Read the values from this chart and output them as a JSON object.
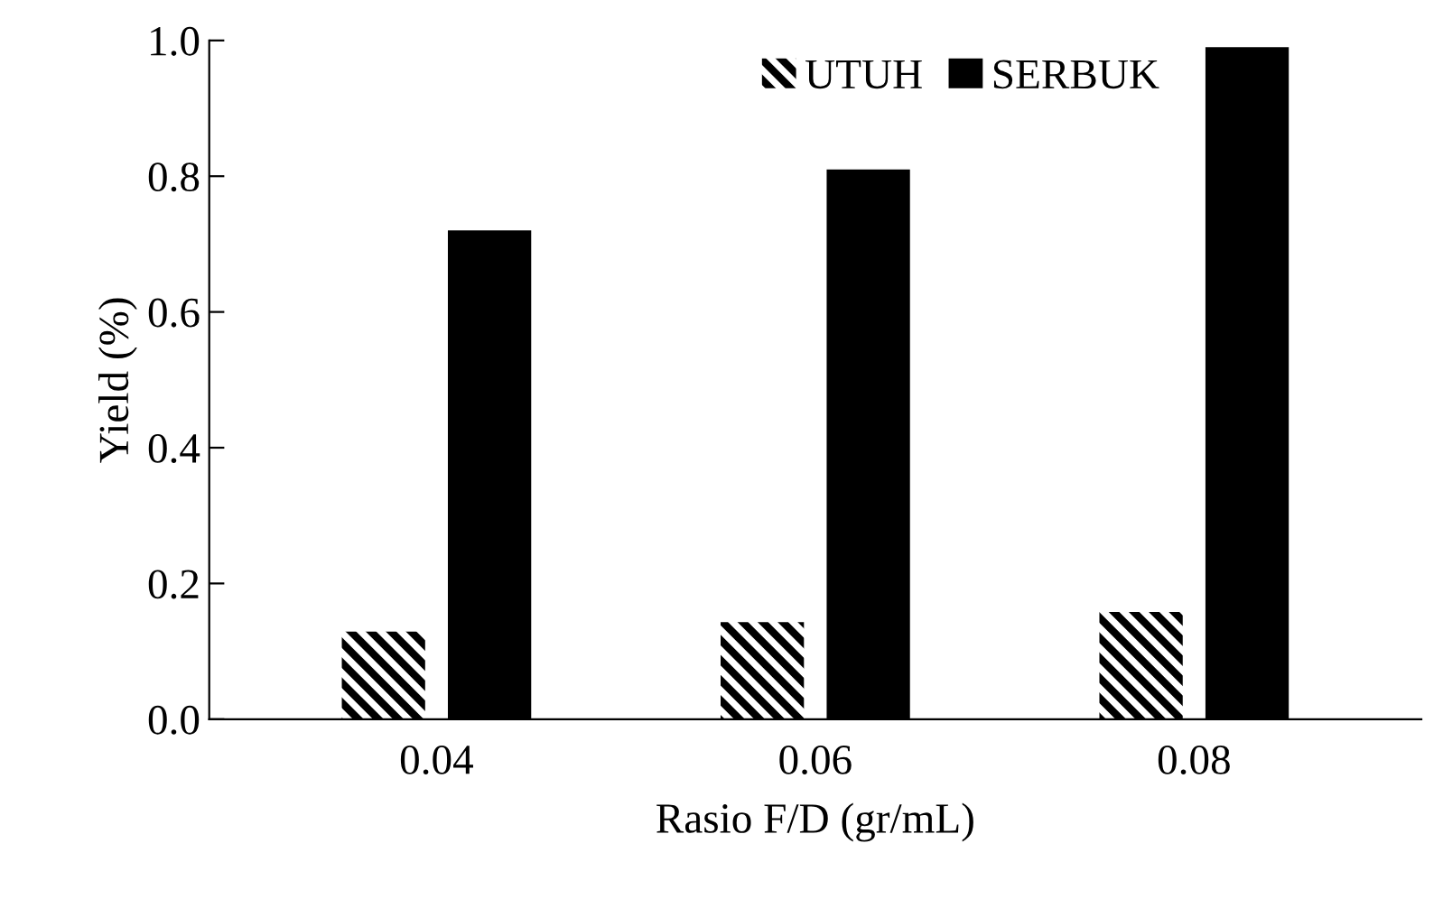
{
  "chart_data": {
    "type": "bar",
    "xlabel": "Rasio F/D (gr/mL)",
    "ylabel": "Yield (%)",
    "categories": [
      "0.04",
      "0.06",
      "0.08"
    ],
    "series": [
      {
        "name": "UTUH",
        "color": "#000000",
        "values": [
          0.129,
          0.143,
          0.158
        ]
      },
      {
        "name": "SERBUK",
        "color": "#000000",
        "values": [
          0.72,
          0.81,
          0.99
        ]
      }
    ],
    "ylim": [
      0,
      1
    ],
    "yticks": [
      {
        "value": 0,
        "label": "0.0"
      },
      {
        "value": 0.2,
        "label": "0.2"
      },
      {
        "value": 0.4,
        "label": "0.4"
      },
      {
        "value": 0.6,
        "label": "0.6"
      },
      {
        "value": 0.8,
        "label": "0.8"
      },
      {
        "value": 1,
        "label": "1.0"
      }
    ],
    "grid": false,
    "legend": "top right"
  }
}
